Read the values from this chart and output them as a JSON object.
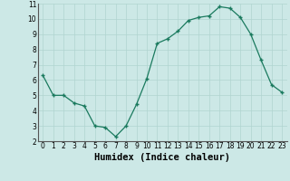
{
  "x": [
    0,
    1,
    2,
    3,
    4,
    5,
    6,
    7,
    8,
    9,
    10,
    11,
    12,
    13,
    14,
    15,
    16,
    17,
    18,
    19,
    20,
    21,
    22,
    23
  ],
  "y": [
    6.3,
    5.0,
    5.0,
    4.5,
    4.3,
    3.0,
    2.9,
    2.3,
    3.0,
    4.4,
    6.1,
    8.4,
    8.7,
    9.2,
    9.9,
    10.1,
    10.2,
    10.8,
    10.7,
    10.1,
    9.0,
    7.3,
    5.7,
    5.2
  ],
  "xlabel": "Humidex (Indice chaleur)",
  "ylim": [
    2,
    11
  ],
  "xlim": [
    -0.5,
    23.5
  ],
  "yticks": [
    2,
    3,
    4,
    5,
    6,
    7,
    8,
    9,
    10,
    11
  ],
  "xticks": [
    0,
    1,
    2,
    3,
    4,
    5,
    6,
    7,
    8,
    9,
    10,
    11,
    12,
    13,
    14,
    15,
    16,
    17,
    18,
    19,
    20,
    21,
    22,
    23
  ],
  "line_color": "#1a7a5e",
  "marker_color": "#1a7a5e",
  "bg_color": "#cce8e6",
  "grid_color": "#b0d4d0",
  "tick_fontsize": 5.5,
  "xlabel_fontsize": 7.5
}
